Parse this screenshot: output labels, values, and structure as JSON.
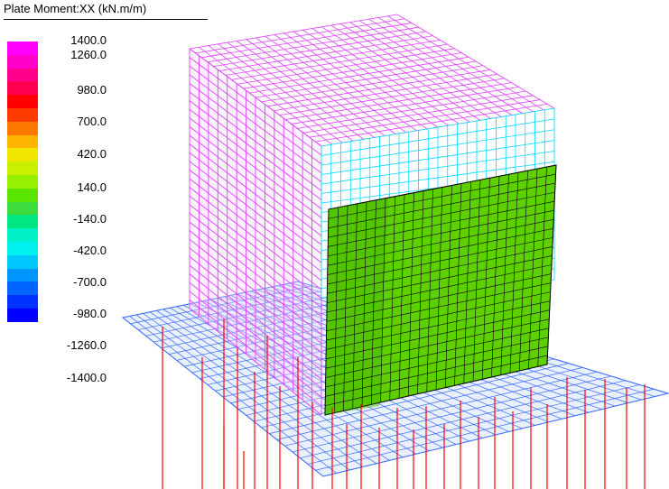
{
  "legend": {
    "title": "Plate Moment:XX (kN.m/m)",
    "labels": [
      "1400.0",
      "1260.0",
      "980.0",
      "700.0",
      "420.0",
      "140.0",
      "-140.0",
      "-420.0",
      "-700.0",
      "-980.0",
      "-1260.0",
      "-1400.0"
    ],
    "colors": [
      "#ff00ff",
      "#ff00c8",
      "#ff008c",
      "#ff0050",
      "#ff0000",
      "#ff3c00",
      "#ff7800",
      "#ffb400",
      "#f0e600",
      "#c8f000",
      "#96f000",
      "#5ae600",
      "#3cdc3c",
      "#00e682",
      "#00f0c8",
      "#00f0f0",
      "#00c8ff",
      "#0096ff",
      "#0064ff",
      "#0032ff",
      "#0000ff"
    ]
  },
  "scene": {
    "colors": {
      "wall_mesh": "#e040ff",
      "wall_shade": "#f6d8ff",
      "back_wall_mesh": "#00d8ff",
      "green_face": "#5ed000",
      "green_face_dark": "#4ab800",
      "base_mesh": "#3a6cff",
      "base_fill": "#e9f0ff",
      "piles": "#ff0000"
    }
  }
}
